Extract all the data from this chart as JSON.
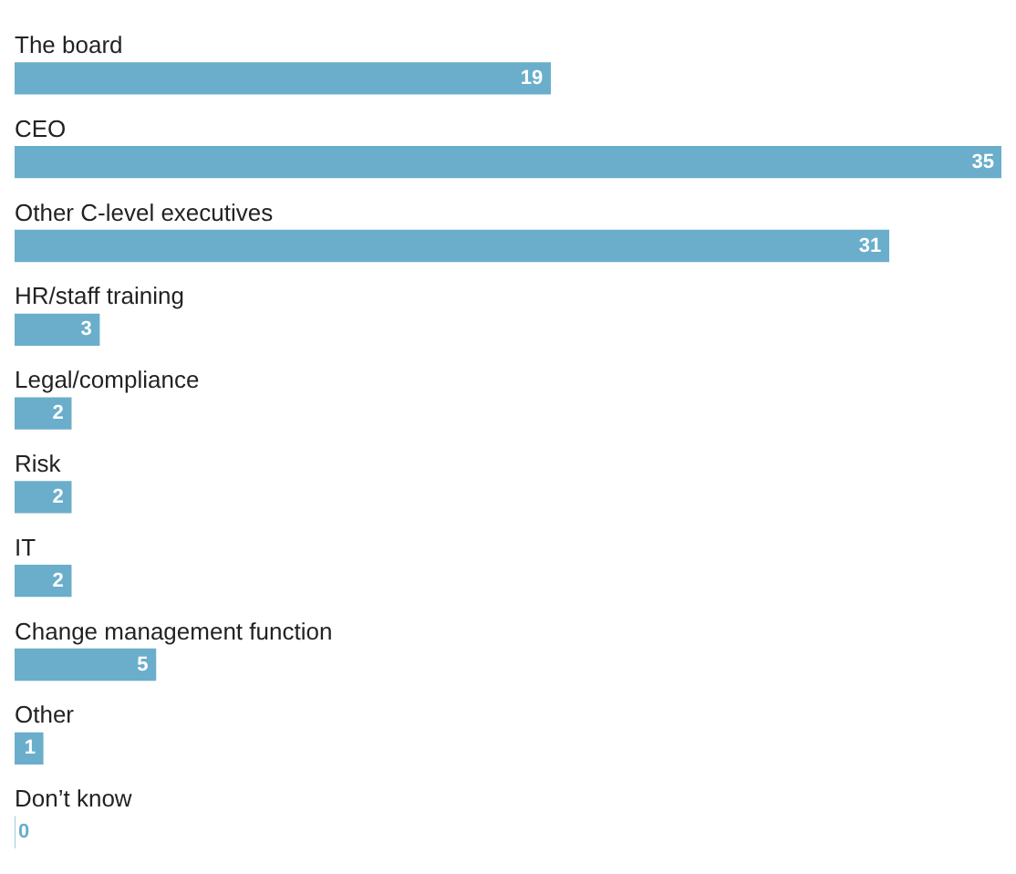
{
  "chart_data": {
    "type": "bar",
    "orientation": "horizontal",
    "categories": [
      "The board",
      "CEO",
      "Other C-level executives",
      "HR/staff training",
      "Legal/compliance",
      "Risk",
      "IT",
      "Change management function",
      "Other",
      "Don’t know"
    ],
    "values": [
      19,
      35,
      31,
      3,
      2,
      2,
      2,
      5,
      1,
      0
    ],
    "color": "#6aaecb",
    "data_labels": true
  }
}
